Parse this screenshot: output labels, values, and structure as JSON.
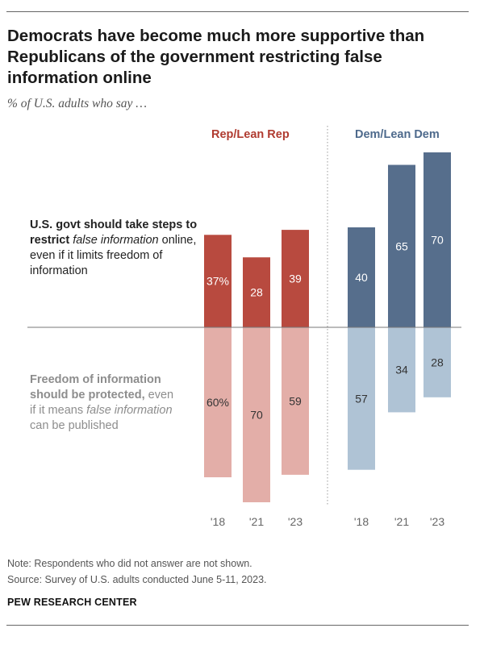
{
  "title": "Democrats have become much more supportive than Republicans of the government restricting false information online",
  "subtitle": "% of U.S. adults who say …",
  "legend": {
    "restrict_bold": "U.S. govt should take steps to restrict",
    "restrict_italic": "false information",
    "restrict_rest": "online, even if it limits freedom of information",
    "freedom_bold": "Freedom of information should be protected,",
    "freedom_pre": "even if it means",
    "freedom_italic": "false information",
    "freedom_post": "can be published"
  },
  "note": "Note: Respondents who did not answer are not shown.",
  "source": "Source: Survey of U.S. adults conducted June 5-11, 2023.",
  "brand": "PEW RESEARCH CENTER",
  "colors": {
    "rep_restrict": "#b84a3f",
    "rep_freedom": "#e3aea8",
    "dem_restrict": "#566e8c",
    "dem_freedom": "#afc3d5",
    "rep_label": "#b03b30",
    "dem_label": "#4e6a8c"
  },
  "chart_data": {
    "type": "bar",
    "categories": [
      "'18",
      "'21",
      "'23"
    ],
    "groups": [
      {
        "name": "Rep/Lean Rep",
        "series": [
          {
            "name": "U.S. govt should take steps to restrict false information online, even if it limits freedom of information",
            "values": [
              37,
              28,
              39
            ],
            "labels": [
              "37%",
              "28",
              "39"
            ]
          },
          {
            "name": "Freedom of information should be protected, even if it means false information can be published",
            "values": [
              60,
              70,
              59
            ],
            "labels": [
              "60%",
              "70",
              "59"
            ]
          }
        ]
      },
      {
        "name": "Dem/Lean Dem",
        "series": [
          {
            "name": "U.S. govt should take steps to restrict false information online, even if it limits freedom of information",
            "values": [
              40,
              65,
              70
            ],
            "labels": [
              "40",
              "65",
              "70"
            ]
          },
          {
            "name": "Freedom of information should be protected, even if it means false information can be published",
            "values": [
              57,
              34,
              28
            ],
            "labels": [
              "57",
              "34",
              "28"
            ]
          }
        ]
      }
    ]
  }
}
